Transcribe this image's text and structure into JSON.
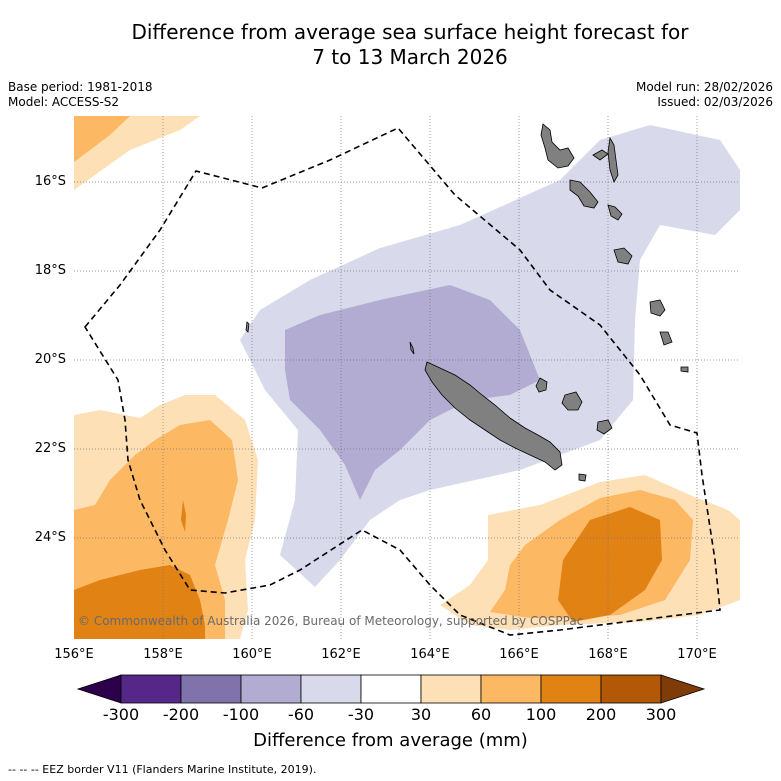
{
  "title_line1": "Difference from average sea surface height forecast for",
  "title_line2": "7 to 13 March 2026",
  "base_period": "Base period: 1981-2018",
  "model": "Model: ACCESS-S2",
  "model_run": "Model run: 28/02/2026",
  "issued": "Issued: 02/03/2026",
  "copyright": "© Commonwealth of Australia 2026, Bureau of Meteorology, supported by COSPPac",
  "lat_labels": [
    "16°S",
    "18°S",
    "20°S",
    "22°S",
    "24°S"
  ],
  "lon_labels": [
    "156°E",
    "158°E",
    "160°E",
    "162°E",
    "164°E",
    "166°E",
    "168°E",
    "170°E"
  ],
  "colorbar": {
    "ticks": [
      "-300",
      "-200",
      "-100",
      "-60",
      "-30",
      "30",
      "60",
      "100",
      "200",
      "300"
    ],
    "colors": [
      "#2d004b",
      "#542788",
      "#8073ac",
      "#b2abd2",
      "#d8daeb",
      "#ffffff",
      "#fee0b6",
      "#fdb863",
      "#e08214",
      "#b35806",
      "#7f3b08"
    ],
    "label": "Difference from average (mm)"
  },
  "footnote": "--  --  -- EEZ border V11 (Flanders Marine Institute, 2019).",
  "colors": {
    "land": "#808080",
    "eez": "#000000",
    "grid": "#777777"
  }
}
